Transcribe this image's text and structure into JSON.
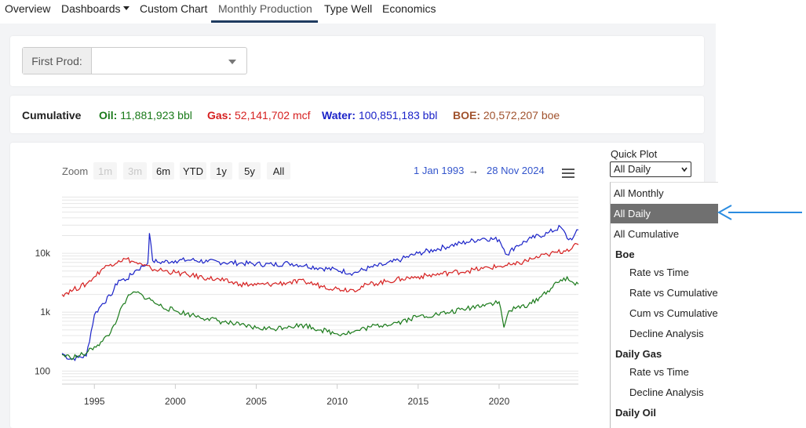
{
  "nav": {
    "overview": "Overview",
    "dashboards": "Dashboards",
    "custom_chart": "Custom Chart",
    "monthly_production": "Monthly Production",
    "type_well": "Type Well",
    "economics": "Economics"
  },
  "filter": {
    "first_prod_label": "First Prod:",
    "first_prod_value": ""
  },
  "cumulative": {
    "title": "Cumulative",
    "oil_label": "Oil:",
    "oil_value": "11,881,923 bbl",
    "gas_label": "Gas:",
    "gas_value": "52,141,702 mcf",
    "water_label": "Water:",
    "water_value": "100,851,183 bbl",
    "boe_label": "BOE:",
    "boe_value": "20,572,207 boe",
    "colors": {
      "oil": "#1a7a1a",
      "gas": "#d62020",
      "water": "#1a22c8",
      "boe": "#a0522d"
    }
  },
  "chart_controls": {
    "zoom_label": "Zoom",
    "buttons": [
      "1m",
      "3m",
      "6m",
      "YTD",
      "1y",
      "5y",
      "All"
    ],
    "disabled": [
      "1m",
      "3m"
    ],
    "range_from": "1 Jan 1993",
    "range_arrow": "→",
    "range_to": "28 Nov 2024",
    "menu_icon": "hamburger-icon"
  },
  "chart_data": {
    "type": "line",
    "yscale": "log",
    "ylim": [
      60,
      100000
    ],
    "xlim": [
      1993.0,
      2024.9
    ],
    "y_ticks": [
      {
        "value": 100,
        "label": "100"
      },
      {
        "value": 1000,
        "label": "1k"
      },
      {
        "value": 10000,
        "label": "10k"
      }
    ],
    "x_ticks": [
      {
        "value": 1995,
        "label": "1995"
      },
      {
        "value": 2000,
        "label": "2000"
      },
      {
        "value": 2005,
        "label": "2005"
      },
      {
        "value": 2010,
        "label": "2010"
      },
      {
        "value": 2015,
        "label": "2015"
      },
      {
        "value": 2020,
        "label": "2020"
      }
    ],
    "grid": true,
    "series": [
      {
        "color": "#1a22c8",
        "points": [
          [
            1993.0,
            200
          ],
          [
            1993.5,
            160
          ],
          [
            1994.0,
            170
          ],
          [
            1994.5,
            180
          ],
          [
            1995.0,
            900
          ],
          [
            1995.5,
            1400
          ],
          [
            1996.0,
            1900
          ],
          [
            1996.5,
            3500
          ],
          [
            1997.0,
            3600
          ],
          [
            1997.5,
            5000
          ],
          [
            1998.0,
            6000
          ],
          [
            1998.3,
            6800
          ],
          [
            1998.4,
            22000
          ],
          [
            1998.6,
            7500
          ],
          [
            1999.0,
            7000
          ],
          [
            2000.0,
            7500
          ],
          [
            2001.0,
            7700
          ],
          [
            2002.0,
            7200
          ],
          [
            2003.0,
            7000
          ],
          [
            2004.0,
            6800
          ],
          [
            2005.0,
            6600
          ],
          [
            2006.0,
            6400
          ],
          [
            2007.0,
            6800
          ],
          [
            2008.0,
            6200
          ],
          [
            2009.0,
            5600
          ],
          [
            2010.0,
            5200
          ],
          [
            2011.0,
            4600
          ],
          [
            2012.0,
            5700
          ],
          [
            2013.0,
            6500
          ],
          [
            2014.0,
            8000
          ],
          [
            2015.0,
            10000
          ],
          [
            2016.0,
            11500
          ],
          [
            2017.0,
            13500
          ],
          [
            2018.0,
            15500
          ],
          [
            2019.0,
            18000
          ],
          [
            2020.0,
            17000
          ],
          [
            2020.5,
            9500
          ],
          [
            2021.0,
            13000
          ],
          [
            2022.0,
            18000
          ],
          [
            2023.0,
            22000
          ],
          [
            2023.8,
            28000
          ],
          [
            2024.3,
            17000
          ],
          [
            2024.6,
            19000
          ],
          [
            2024.9,
            25000
          ]
        ]
      },
      {
        "color": "#d62020",
        "points": [
          [
            1993.0,
            2000
          ],
          [
            1993.7,
            2400
          ],
          [
            1994.5,
            3000
          ],
          [
            1995.0,
            4000
          ],
          [
            1995.5,
            5500
          ],
          [
            1996.0,
            6500
          ],
          [
            1996.5,
            7500
          ],
          [
            1997.0,
            8000
          ],
          [
            1997.5,
            7000
          ],
          [
            1998.0,
            6200
          ],
          [
            1998.5,
            5500
          ],
          [
            1999.0,
            5200
          ],
          [
            2000.0,
            4700
          ],
          [
            2001.0,
            4200
          ],
          [
            2002.0,
            3800
          ],
          [
            2003.0,
            3400
          ],
          [
            2004.0,
            3000
          ],
          [
            2005.0,
            2900
          ],
          [
            2006.0,
            3000
          ],
          [
            2007.0,
            3200
          ],
          [
            2008.0,
            3300
          ],
          [
            2009.0,
            2800
          ],
          [
            2010.0,
            2500
          ],
          [
            2011.0,
            2400
          ],
          [
            2012.0,
            3000
          ],
          [
            2013.0,
            3300
          ],
          [
            2014.0,
            3700
          ],
          [
            2015.0,
            4000
          ],
          [
            2016.0,
            4300
          ],
          [
            2017.0,
            4700
          ],
          [
            2018.0,
            5000
          ],
          [
            2019.0,
            5500
          ],
          [
            2020.0,
            6000
          ],
          [
            2021.0,
            6400
          ],
          [
            2022.0,
            8000
          ],
          [
            2023.0,
            9500
          ],
          [
            2024.0,
            11000
          ],
          [
            2024.9,
            14000
          ]
        ]
      },
      {
        "color": "#1a7a1a",
        "points": [
          [
            1993.0,
            190
          ],
          [
            1993.5,
            170
          ],
          [
            1994.0,
            180
          ],
          [
            1994.5,
            200
          ],
          [
            1995.0,
            260
          ],
          [
            1995.5,
            320
          ],
          [
            1996.0,
            450
          ],
          [
            1996.5,
            900
          ],
          [
            1997.0,
            1700
          ],
          [
            1997.5,
            2200
          ],
          [
            1998.0,
            1900
          ],
          [
            1998.5,
            1600
          ],
          [
            1999.0,
            1300
          ],
          [
            2000.0,
            1050
          ],
          [
            2001.0,
            900
          ],
          [
            2002.0,
            780
          ],
          [
            2003.0,
            680
          ],
          [
            2004.0,
            600
          ],
          [
            2005.0,
            540
          ],
          [
            2006.0,
            520
          ],
          [
            2007.0,
            580
          ],
          [
            2008.0,
            600
          ],
          [
            2009.0,
            500
          ],
          [
            2010.0,
            430
          ],
          [
            2011.0,
            460
          ],
          [
            2012.0,
            560
          ],
          [
            2013.0,
            620
          ],
          [
            2014.0,
            700
          ],
          [
            2015.0,
            850
          ],
          [
            2016.0,
            900
          ],
          [
            2017.0,
            1000
          ],
          [
            2018.0,
            1150
          ],
          [
            2019.0,
            1350
          ],
          [
            2020.0,
            1500
          ],
          [
            2020.3,
            550
          ],
          [
            2020.6,
            1050
          ],
          [
            2021.0,
            1150
          ],
          [
            2022.0,
            1400
          ],
          [
            2023.0,
            2300
          ],
          [
            2024.0,
            3800
          ],
          [
            2024.5,
            3300
          ],
          [
            2024.9,
            3000
          ]
        ]
      }
    ]
  },
  "quick_plot": {
    "label": "Quick Plot",
    "selected": "All Daily",
    "items": [
      {
        "label": "All Monthly",
        "kind": "top"
      },
      {
        "label": "All Daily",
        "kind": "top",
        "selected": true
      },
      {
        "label": "All Cumulative",
        "kind": "top"
      },
      {
        "label": "Boe",
        "kind": "group"
      },
      {
        "label": "Rate vs Time",
        "kind": "sub"
      },
      {
        "label": "Rate vs Cumulative",
        "kind": "sub"
      },
      {
        "label": "Cum vs Cumulative",
        "kind": "sub"
      },
      {
        "label": "Decline Analysis",
        "kind": "sub"
      },
      {
        "label": "Daily Gas",
        "kind": "group"
      },
      {
        "label": "Rate vs Time",
        "kind": "sub"
      },
      {
        "label": "Decline Analysis",
        "kind": "sub"
      },
      {
        "label": "Daily Oil",
        "kind": "group"
      }
    ]
  },
  "annotation": {
    "arrow_color": "#2b8ce0",
    "arrow_target": "All Daily"
  }
}
